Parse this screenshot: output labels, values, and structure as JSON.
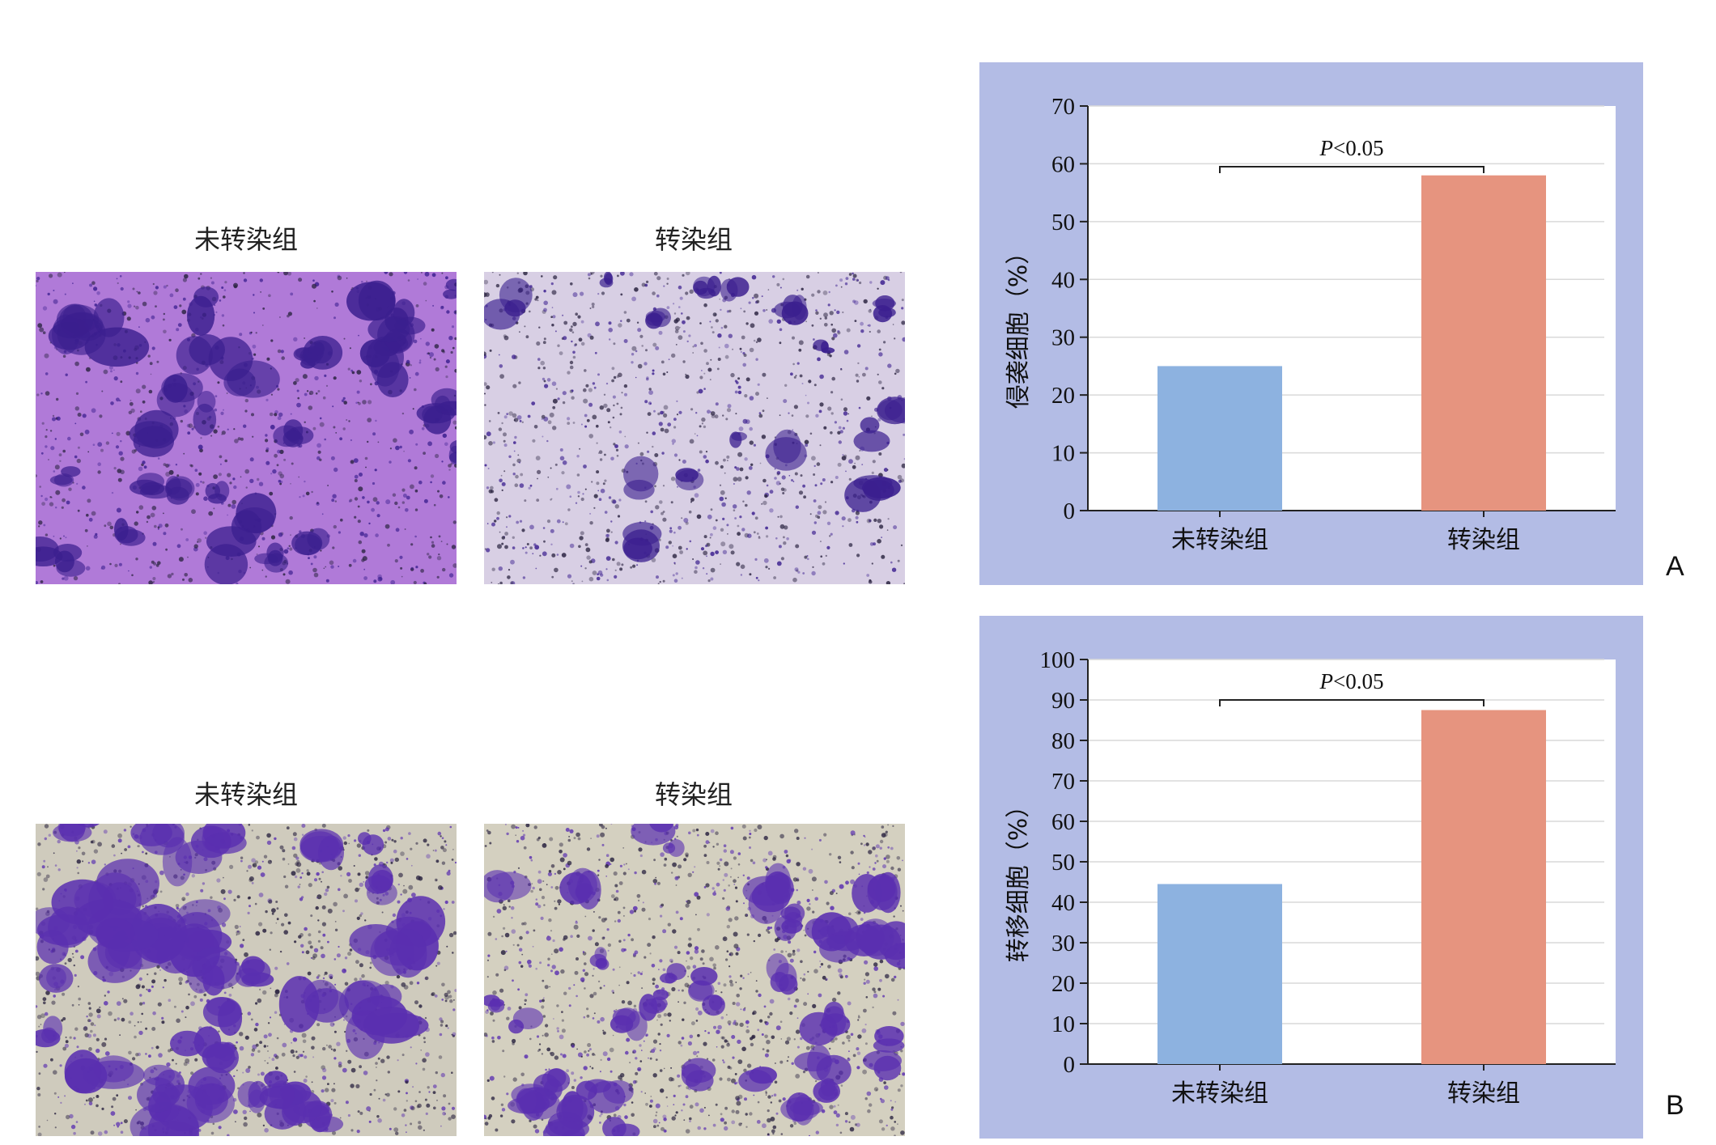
{
  "micrographs": {
    "invasion": {
      "untransfected_label": "未转染组",
      "transfected_label": "转染组",
      "untransfected_background": "#b07ad8",
      "transfected_background": "#d8cfe4",
      "stain_color": "#3b1f8f"
    },
    "migration": {
      "untransfected_label": "未转染组",
      "transfected_label": "转染组",
      "untransfected_background": "#cfcbbd",
      "transfected_background": "#d4d0c0",
      "stain_color": "#5a2fb0"
    }
  },
  "panel_letters": {
    "a": "A",
    "b": "B"
  },
  "colors": {
    "panel_background": "#b3bce5",
    "bar_untransfected": "#8db2e0",
    "bar_transfected": "#e6947f",
    "grid": "#d9d9d9",
    "axis": "#222222"
  },
  "chart_data": [
    {
      "type": "bar",
      "panel": "A",
      "categories": [
        "未转染组",
        "转染组"
      ],
      "values": [
        25,
        58
      ],
      "ylabel": "侵袭细胞（%）",
      "ylim": [
        0,
        70
      ],
      "yticks": [
        0,
        10,
        20,
        30,
        40,
        50,
        60,
        70
      ],
      "grid": true,
      "annotation": {
        "label": "P<0.05",
        "italic_prefix": "P",
        "rest": "<0.05",
        "bracket_level": 59.5
      }
    },
    {
      "type": "bar",
      "panel": "B",
      "categories": [
        "未转染组",
        "转染组"
      ],
      "values": [
        44.5,
        87.5
      ],
      "ylabel": "转移细胞（%）",
      "ylim": [
        0,
        100
      ],
      "yticks": [
        0,
        10,
        20,
        30,
        40,
        50,
        60,
        70,
        80,
        90,
        100
      ],
      "grid": true,
      "annotation": {
        "label": "P<0.05",
        "italic_prefix": "P",
        "rest": "<0.05",
        "bracket_level": 90
      }
    }
  ]
}
